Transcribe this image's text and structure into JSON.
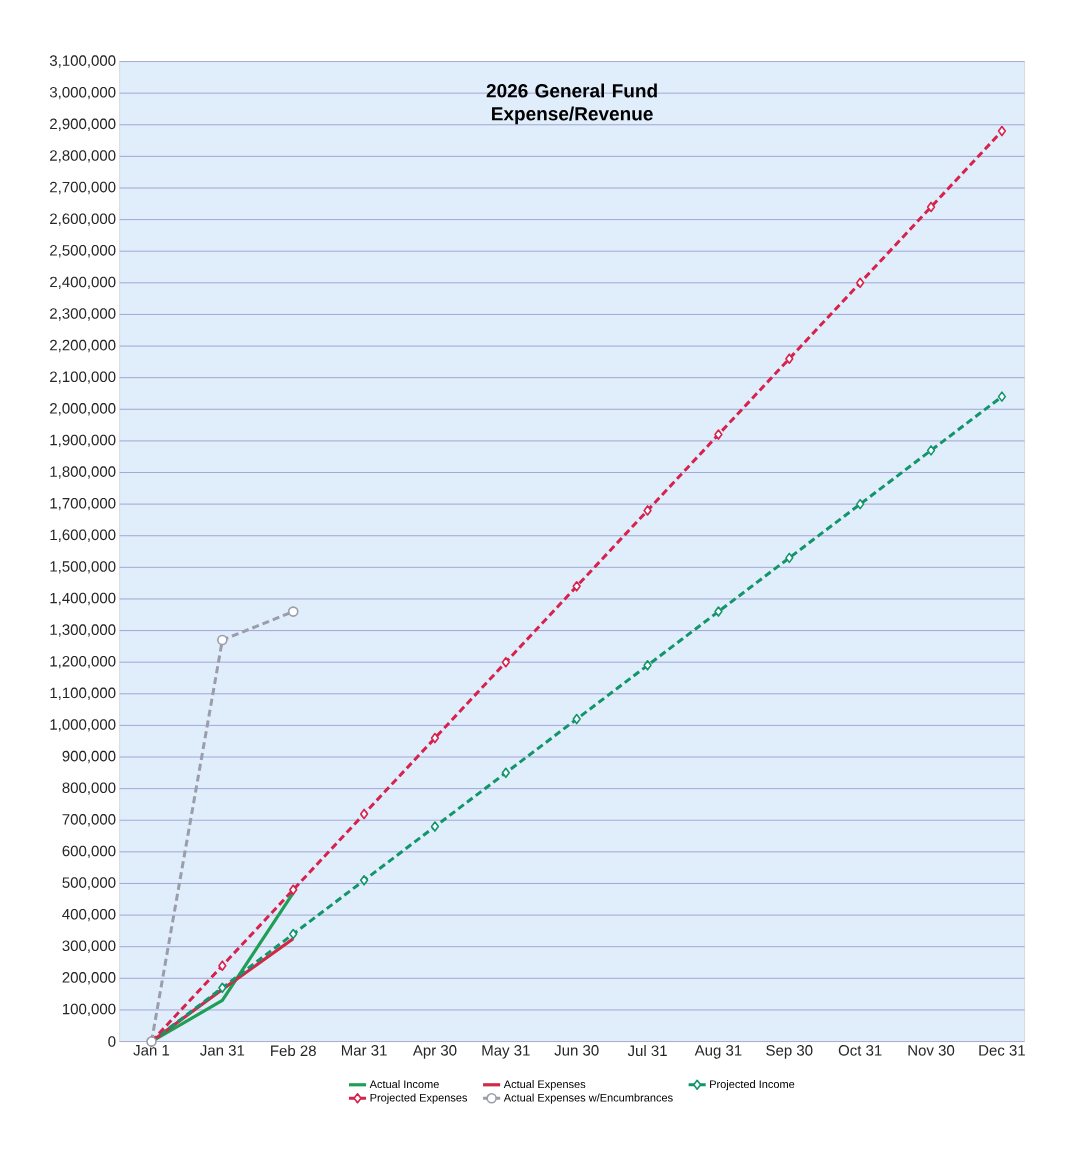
{
  "chart_data": {
    "type": "line",
    "title": "2026 General Fund Expense/Revenue",
    "categories": [
      "Jan 1",
      "Jan 31",
      "Feb 28",
      "Mar 31",
      "Apr 30",
      "May 31",
      "Jun 30",
      "Jul 31",
      "Aug 31",
      "Sep 30",
      "Oct 31",
      "Nov 30",
      "Dec 31"
    ],
    "series": [
      {
        "name": "Actual Income",
        "color": "#1f9e55",
        "line_style": "solid",
        "marker": "none",
        "values": [
          0,
          130000,
          470000,
          null,
          null,
          null,
          null,
          null,
          null,
          null,
          null,
          null,
          null
        ]
      },
      {
        "name": "Actual Expenses",
        "color": "#d12a45",
        "line_style": "solid",
        "marker": "none",
        "values": [
          0,
          165000,
          325000,
          null,
          null,
          null,
          null,
          null,
          null,
          null,
          null,
          null,
          null
        ]
      },
      {
        "name": "Projected Income",
        "color": "#12956b",
        "line_style": "dashed",
        "marker": "diamond",
        "values": [
          0,
          170000,
          340000,
          510000,
          680000,
          850000,
          1020000,
          1190000,
          1360000,
          1530000,
          1700000,
          1870000,
          2040000
        ]
      },
      {
        "name": "Projected Expenses",
        "color": "#d6224c",
        "line_style": "dashed",
        "marker": "diamond",
        "values": [
          0,
          240000,
          480000,
          720000,
          960000,
          1200000,
          1440000,
          1680000,
          1920000,
          2160000,
          2400000,
          2640000,
          2880000
        ]
      },
      {
        "name": "Actual Expenses w/Encumbrances",
        "color": "#9a9eaa",
        "line_style": "dashed",
        "marker": "circle",
        "values": [
          0,
          1270000,
          1360000,
          null,
          null,
          null,
          null,
          null,
          null,
          null,
          null,
          null,
          null
        ]
      }
    ],
    "ylim": [
      0,
      3100000
    ],
    "yticks": [
      0,
      {
        "value": 100000,
        "label": "100,000"
      },
      {
        "value": 200000,
        "label": "200,000"
      },
      {
        "value": 300000,
        "label": "300,000"
      },
      {
        "value": 400000,
        "label": "400,000"
      },
      {
        "value": 500000,
        "label": "500,000"
      },
      {
        "value": 600000,
        "label": "600,000"
      },
      {
        "value": 700000,
        "label": "700,000"
      },
      {
        "value": 800000,
        "label": "800,000"
      },
      {
        "value": 900000,
        "label": "900,000"
      },
      {
        "value": 1000000,
        "label": "1,000,000"
      },
      {
        "value": 1100000,
        "label": "1,100,000"
      },
      {
        "value": 1200000,
        "label": "1,200,000"
      },
      {
        "value": 1300000,
        "label": "1,300,000"
      },
      {
        "value": 1400000,
        "label": "1,400,000"
      },
      {
        "value": 1500000,
        "label": "1,500,000"
      },
      {
        "value": 1600000,
        "label": "1,600,000"
      },
      {
        "value": 1700000,
        "label": "1,700,000"
      },
      {
        "value": 1800000,
        "label": "1,800,000"
      },
      {
        "value": 1900000,
        "label": "1,900,000"
      },
      {
        "value": 2000000,
        "label": "2,000,000"
      },
      {
        "value": 2100000,
        "label": "2,100,000"
      },
      {
        "value": 2200000,
        "label": "2,200,000"
      },
      {
        "value": 2300000,
        "label": "2,300,000"
      },
      {
        "value": 2400000,
        "label": "2,400,000"
      },
      {
        "value": 2500000,
        "label": "2,500,000"
      },
      {
        "value": 2600000,
        "label": "2,600,000"
      },
      {
        "value": 2700000,
        "label": "2,700,000"
      },
      {
        "value": 2800000,
        "label": "2,800,000"
      },
      {
        "value": 2900000,
        "label": "2,900,000"
      },
      {
        "value": 3000000,
        "label": "3,000,000"
      },
      {
        "value": 3100000,
        "label": "3,100,000"
      }
    ],
    "grid": "y",
    "legend": "bottom"
  }
}
